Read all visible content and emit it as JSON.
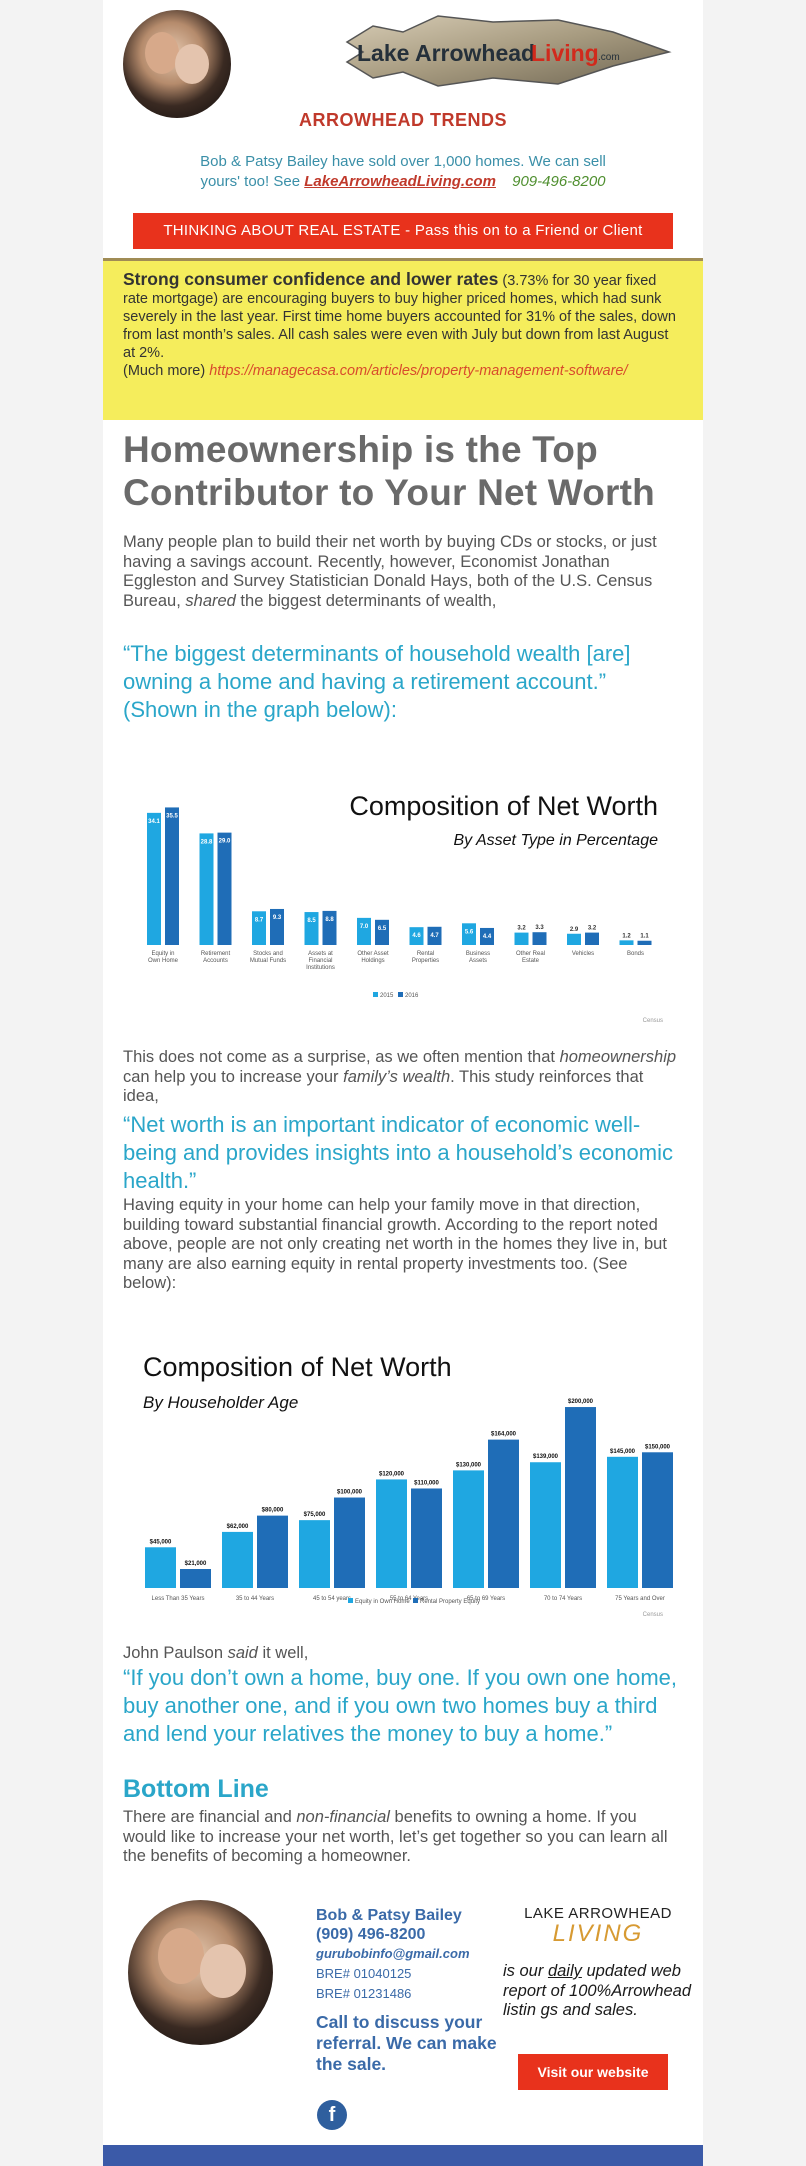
{
  "header": {
    "logo_text": "Lake Arrowhead Living.com",
    "trends_title": "ARROWHEAD TRENDS",
    "sold_line1": "Bob & Patsy Bailey have sold over 1,000 homes. We can sell",
    "sold_line2_prefix": "yours' too!    See",
    "site_link": "LakeArrowheadLiving.com",
    "phone": "909-496-8200",
    "cta_bar": "THINKING ABOUT REAL ESTATE  -  Pass this on  to a Friend or Client"
  },
  "yellow": {
    "headline": "Strong consumer confidence and lower rates",
    "body": " (3.73% for 30 year fixed rate mortgage) are encouraging buyers to buy higher priced homes, which had sunk severely in the last year. First time home buyers accounted for 31% of the sales, down from last month’s sales. All cash sales were even with July but down from last August at 2%.",
    "more_label": "(Much more)",
    "more_link": "https://managecasa.com/articles/property-management-software/"
  },
  "article": {
    "title": "Homeownership is the Top Contributor to Your Net Worth",
    "intro_a": "Many people plan to build their net worth by buying CDs or stocks, or just having a savings account. Recently, however, Economist Jonathan Eggleston and Survey Statistician Donald Hays, both of the U.S. Census Bureau,",
    "intro_shared": "shared",
    "intro_b": " the biggest determinants of wealth,",
    "quote1": "“The biggest determinants of household wealth [are] owning a home and having a retirement account.” (Shown in the graph below):",
    "p2_a": "This does not come as a surprise, as we often mention that",
    "p2_homeownership": "homeownership",
    "p2_b": " can help you to increase your",
    "p2_familys": "family’s wealth",
    "p2_c": ". This study reinforces that idea,",
    "quote2": " “Net worth is an important indicator of economic well-being and provides insights into a household’s economic health.”",
    "p3": "Having equity in your home can help your family move in that direction, building toward substantial financial growth. According to the report noted above, people are not only creating net worth in the homes they live in, but many are also earning equity in rental property investments too. (See below):",
    "p4_a": "John Paulson",
    "p4_said": "said",
    "p4_b": " it well,",
    "quote3": "“If you don’t own a home, buy one. If you own one home, buy another one, and if you own two homes buy a third and lend your relatives the money to buy a home.”",
    "bottom_line": "Bottom Line",
    "p5_a": "There are financial and",
    "p5_nonfin": "non-financial",
    "p5_b": " benefits to owning a home. If you would like to increase your net worth, let’s get together so you can learn all the benefits of becoming a homeowner."
  },
  "footer": {
    "name": "Bob & Patsy Bailey",
    "phone": "(909) 496-8200",
    "email": "gurubobinfo@gmail.com",
    "bre1": "BRE# 01040125",
    "bre2": "BRE# 01231486",
    "call": "Call to discuss your referral. We can make the sale.",
    "logo_top": "LAKE ARROWHEAD",
    "logo_bottom": "LIVING",
    "daily_a": "is our",
    "daily_word": "daily",
    "daily_b": " updated web report of 100%Arrowhead listin gs and sales.",
    "visit_button": "Visit our website",
    "fb": "f"
  },
  "colors": {
    "accent_red": "#e8321c",
    "quote_blue": "#2aa6c9",
    "bar_light": "#1fa7e1",
    "bar_dark": "#1f6db7",
    "yellow_bg": "#f5ed5c"
  },
  "chart_data": [
    {
      "type": "bar",
      "title": "Composition of Net Worth",
      "subtitle": "By Asset Type in Percentage",
      "categories": [
        "Equity in Own Home",
        "Retirement Accounts",
        "Stocks and Mutual Funds",
        "Assets at Financial Institutions",
        "Other Asset Holdings",
        "Rental Properties",
        "Business Assets",
        "Other Real Estate",
        "Vehicles",
        "Bonds"
      ],
      "series": [
        {
          "name": "2015",
          "values": [
            34.1,
            28.8,
            8.7,
            8.5,
            7.0,
            4.6,
            5.6,
            3.2,
            2.9,
            1.2
          ]
        },
        {
          "name": "2016",
          "values": [
            35.5,
            29.0,
            9.3,
            8.8,
            6.5,
            4.7,
            4.4,
            3.3,
            3.2,
            1.1
          ]
        }
      ],
      "ylim": [
        0,
        40
      ],
      "legend": "bottom-center",
      "source": "Census"
    },
    {
      "type": "bar",
      "title": "Composition of Net Worth",
      "subtitle": "By Householder Age",
      "categories": [
        "Less Than 35 Years",
        "35 to 44 Years",
        "45 to 54 years",
        "55 to 64 Years",
        "65 to 69 Years",
        "70 to 74 Years",
        "75 Years and Over"
      ],
      "series": [
        {
          "name": "Equity in Own Home",
          "values": [
            45000,
            62000,
            75000,
            120000,
            130000,
            139000,
            145000
          ]
        },
        {
          "name": "Rental Property Equity",
          "values": [
            21000,
            80000,
            100000,
            110000,
            164000,
            200000,
            150000
          ]
        }
      ],
      "labels": [
        [
          "$45,000",
          "$62,000",
          "$75,000",
          "$120,000",
          "$130,000",
          "$139,000",
          "$145,000"
        ],
        [
          "$21,000",
          "$80,000",
          "$100,000",
          "$110,000",
          "$164,000",
          "$200,000",
          "$150,000"
        ]
      ],
      "ylim": [
        0,
        210000
      ],
      "legend": "bottom-center",
      "source": "Census"
    }
  ]
}
